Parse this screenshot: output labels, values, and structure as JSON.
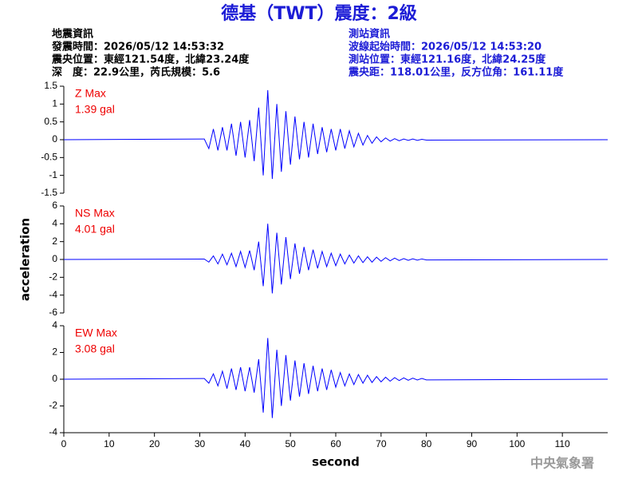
{
  "title": "德基（TWT）震度：2級",
  "info_left": [
    "地震資訊",
    "發震時間：2026/05/12 14:53:32",
    "震央位置：東經121.54度，北緯23.24度",
    "深　度：22.9公里，芮氏規模：5.6"
  ],
  "info_right": [
    "測站資訊",
    "波線起始時間：2026/05/12 14:53:20",
    "測站位置：東經121.16度，北緯24.25度",
    "震央距：118.01公里，反方位角：161.11度"
  ],
  "watermark": "中央氣象署",
  "chart_data": [
    {
      "type": "line",
      "annotations": [
        "Z Max",
        "1.39 gal"
      ],
      "color": "#0000ff",
      "x": [
        0,
        31,
        32,
        33,
        34,
        35,
        36,
        37,
        38,
        39,
        40,
        41,
        42,
        43,
        44,
        45,
        46,
        47,
        48,
        49,
        50,
        51,
        52,
        53,
        54,
        55,
        56,
        57,
        58,
        59,
        60,
        61,
        62,
        63,
        64,
        65,
        66,
        67,
        68,
        69,
        70,
        71,
        72,
        73,
        74,
        75,
        76,
        77,
        78,
        79,
        80,
        120
      ],
      "values": [
        0,
        0.02,
        -0.25,
        0.3,
        -0.3,
        0.35,
        -0.3,
        0.45,
        -0.45,
        0.5,
        -0.5,
        0.55,
        -0.6,
        0.9,
        -1.0,
        1.39,
        -1.1,
        1.0,
        -0.9,
        0.8,
        -0.7,
        0.65,
        -0.55,
        0.5,
        -0.5,
        0.45,
        -0.4,
        0.35,
        -0.35,
        0.3,
        -0.3,
        0.3,
        -0.25,
        0.25,
        -0.2,
        0.18,
        -0.15,
        0.12,
        -0.1,
        0.08,
        -0.06,
        0.05,
        -0.04,
        0.03,
        -0.03,
        0.02,
        -0.02,
        0.02,
        -0.02,
        0.01,
        -0.01,
        0
      ],
      "xlim": [
        0,
        120
      ],
      "ylim": [
        -1.5,
        1.5
      ],
      "yticks": [
        -1.5,
        -1,
        -0.5,
        0,
        0.5,
        1,
        1.5
      ]
    },
    {
      "type": "line",
      "annotations": [
        "NS Max",
        "4.01 gal"
      ],
      "color": "#0000ff",
      "ylabel": "acceleration",
      "x": [
        0,
        31,
        32,
        33,
        34,
        35,
        36,
        37,
        38,
        39,
        40,
        41,
        42,
        43,
        44,
        45,
        46,
        47,
        48,
        49,
        50,
        51,
        52,
        53,
        54,
        55,
        56,
        57,
        58,
        59,
        60,
        61,
        62,
        63,
        64,
        65,
        66,
        67,
        68,
        69,
        70,
        71,
        72,
        73,
        74,
        75,
        76,
        77,
        78,
        79,
        80,
        120
      ],
      "values": [
        0,
        0.05,
        -0.3,
        0.4,
        -0.5,
        0.6,
        -0.6,
        0.7,
        -0.8,
        0.9,
        -0.9,
        1.0,
        -1.2,
        2.0,
        -3.0,
        4.01,
        -3.8,
        3.0,
        -2.8,
        2.5,
        -2.2,
        1.8,
        -1.6,
        1.4,
        -1.2,
        1.1,
        -1.0,
        0.9,
        -0.8,
        0.7,
        -0.7,
        0.6,
        -0.5,
        0.5,
        -0.4,
        0.4,
        -0.35,
        0.3,
        -0.3,
        0.25,
        -0.2,
        0.2,
        -0.15,
        0.15,
        -0.12,
        0.1,
        -0.1,
        0.08,
        -0.08,
        0.06,
        -0.06,
        0
      ],
      "xlim": [
        0,
        120
      ],
      "ylim": [
        -6,
        6
      ],
      "yticks": [
        -6,
        -4,
        -2,
        0,
        2,
        4,
        6
      ]
    },
    {
      "type": "line",
      "annotations": [
        "EW Max",
        "3.08 gal"
      ],
      "color": "#0000ff",
      "xlabel": "second",
      "x": [
        0,
        31,
        32,
        33,
        34,
        35,
        36,
        37,
        38,
        39,
        40,
        41,
        42,
        43,
        44,
        45,
        46,
        47,
        48,
        49,
        50,
        51,
        52,
        53,
        54,
        55,
        56,
        57,
        58,
        59,
        60,
        61,
        62,
        63,
        64,
        65,
        66,
        67,
        68,
        69,
        70,
        71,
        72,
        73,
        74,
        75,
        76,
        77,
        78,
        79,
        80,
        120
      ],
      "values": [
        0,
        0.05,
        -0.3,
        0.4,
        -0.5,
        0.6,
        -0.7,
        0.8,
        -0.8,
        0.9,
        -0.9,
        0.9,
        -1.0,
        1.5,
        -2.5,
        3.08,
        -2.9,
        2.2,
        -2.0,
        1.8,
        -1.6,
        1.4,
        -1.3,
        1.2,
        -1.1,
        1.0,
        -0.9,
        0.8,
        -0.8,
        0.7,
        -0.6,
        0.5,
        -0.5,
        0.4,
        -0.4,
        0.35,
        -0.3,
        0.3,
        -0.25,
        0.2,
        -0.2,
        0.15,
        -0.15,
        0.12,
        -0.1,
        0.1,
        -0.08,
        0.08,
        -0.06,
        0.06,
        -0.05,
        0
      ],
      "xlim": [
        0,
        120
      ],
      "ylim": [
        -4,
        4
      ],
      "yticks": [
        -4,
        -2,
        0,
        2,
        4
      ],
      "xticks": [
        0,
        10,
        20,
        30,
        40,
        50,
        60,
        70,
        80,
        90,
        100,
        110
      ]
    }
  ]
}
